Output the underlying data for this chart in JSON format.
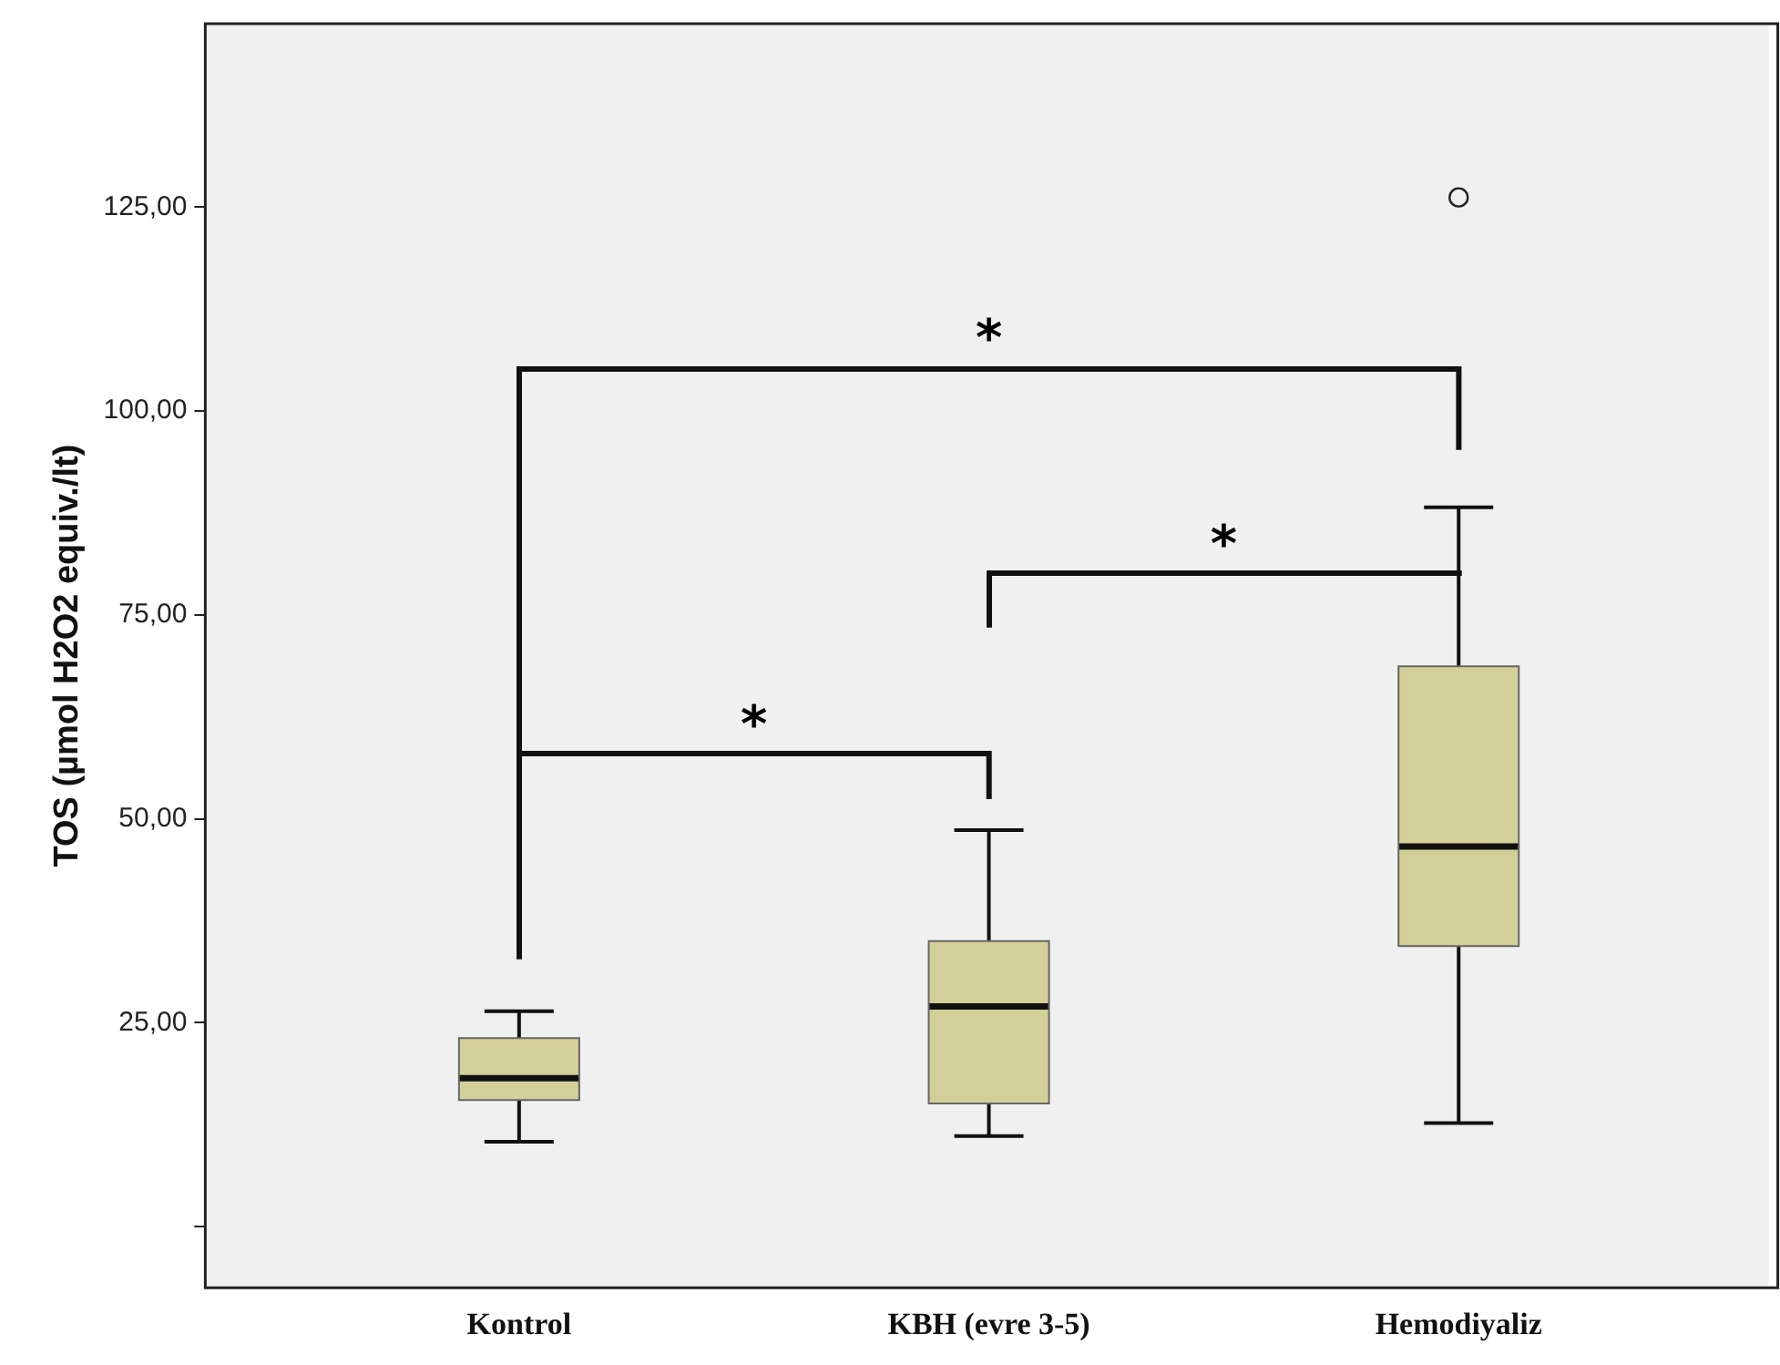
{
  "chart_data": {
    "type": "box",
    "ylabel": "TOS (µmol H2O2 equiv./lt)",
    "categories": [
      "Kontrol",
      "KBH (evre 3-5)",
      "Hemodiyaliz"
    ],
    "boxes": [
      {
        "low": 10.4,
        "q1": 15.5,
        "median": 18.2,
        "q3": 23.1,
        "high": 26.4
      },
      {
        "low": 11.1,
        "q1": 15.1,
        "median": 27.0,
        "q3": 35.0,
        "high": 48.6
      },
      {
        "low": 12.7,
        "q1": 34.4,
        "median": 46.6,
        "q3": 68.7,
        "high": 88.2,
        "outliers": [
          126.2
        ]
      }
    ],
    "color": "#d3cf98",
    "ylim": [
      -7.5,
      147.5
    ],
    "yticks": [
      {
        "value": 0,
        "label": null
      },
      {
        "value": 25,
        "label": "25,00"
      },
      {
        "value": 50,
        "label": "50,00"
      },
      {
        "value": 75,
        "label": "75,00"
      },
      {
        "value": 100,
        "label": "100,00"
      },
      {
        "value": 125,
        "label": "125,00"
      }
    ],
    "grid": false,
    "legend": false,
    "annotations": [
      "*",
      "*",
      "*"
    ]
  }
}
